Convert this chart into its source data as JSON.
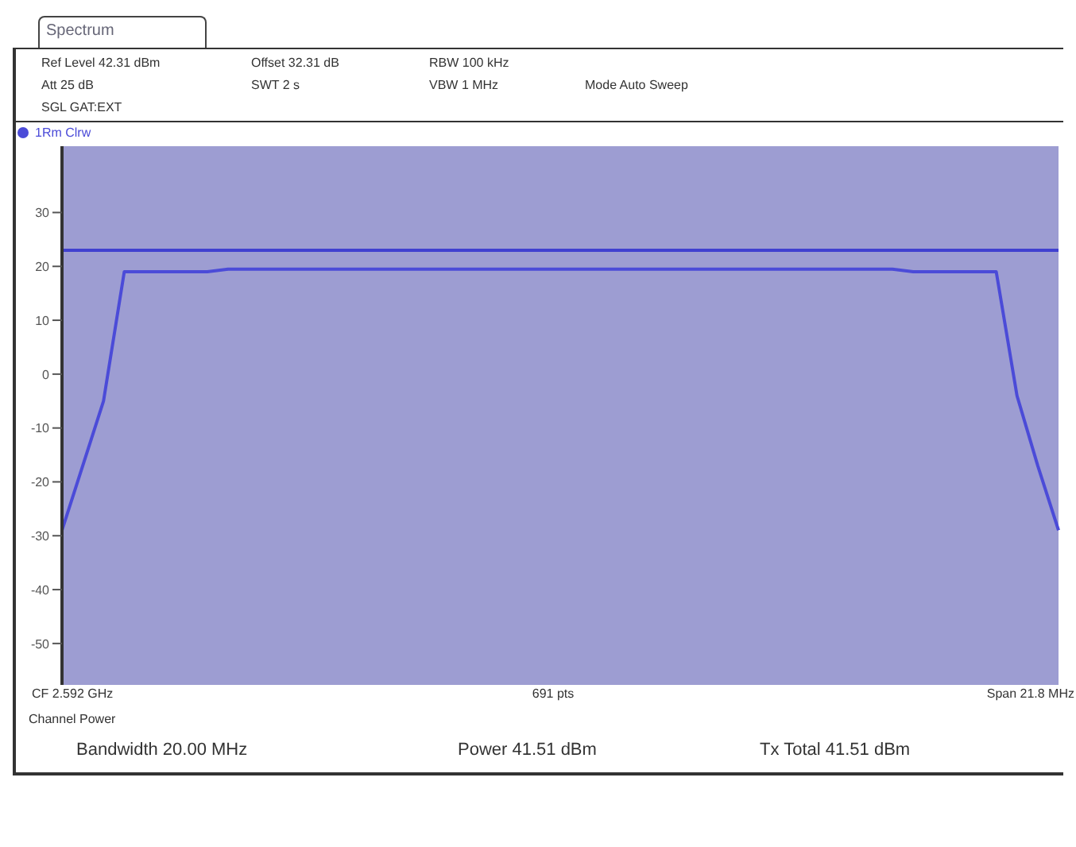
{
  "chart_data": {
    "type": "line",
    "title": "Spectrum",
    "annotations": [
      "Ref Level 42.31 dBm",
      "Offset 32.31 dB",
      "RBW 100 kHz",
      "Att 25 dB",
      "SWT 2 s",
      "VBW 1 MHz",
      "Mode Auto Sweep",
      "SGL GAT:EXT",
      "CF 2.592 GHz",
      "691 pts",
      "Span 21.8 MHz",
      "Channel Power",
      "Bandwidth 20.00 MHz",
      "Power 41.51 dBm",
      "Tx Total 41.51 dBm"
    ],
    "categories": [
      null,
      null,
      null,
      null,
      null,
      null,
      null,
      null,
      null,
      null,
      null,
      null,
      null,
      null,
      null,
      null,
      null,
      null,
      null,
      null,
      null,
      null,
      null,
      null,
      null,
      null,
      null,
      null,
      null,
      null,
      null,
      null,
      null,
      null,
      null,
      null,
      null,
      null,
      null,
      null,
      null,
      null,
      null,
      null,
      null,
      null,
      null,
      null,
      null
    ],
    "series": [
      {
        "name": "1Rm Clrw",
        "color": "#4b4bd8",
        "values": [
          -29,
          -17,
          -5,
          19,
          19,
          19,
          19,
          19,
          19.5,
          19.5,
          19.5,
          19.5,
          19.5,
          19.5,
          19.5,
          19.5,
          19.5,
          19.5,
          19.5,
          19.5,
          19.5,
          19.5,
          19.5,
          19.5,
          19.5,
          19.5,
          19.5,
          19.5,
          19.5,
          19.5,
          19.5,
          19.5,
          19.5,
          19.5,
          19.5,
          19.5,
          19.5,
          19.5,
          19.5,
          19.5,
          19.5,
          19,
          19,
          19,
          19,
          19,
          -4,
          -17,
          -29
        ]
      }
    ],
    "ylim": [
      -57.69,
      42.31
    ],
    "yticks": [
      30,
      20,
      10,
      0,
      -10,
      -20,
      -30,
      -40,
      -50
    ],
    "ref_lines": [
      {
        "axis": "y",
        "value": 23,
        "color": "#4040d0"
      }
    ],
    "legend": "top left",
    "marker": "none",
    "line_style": "solid"
  }
}
